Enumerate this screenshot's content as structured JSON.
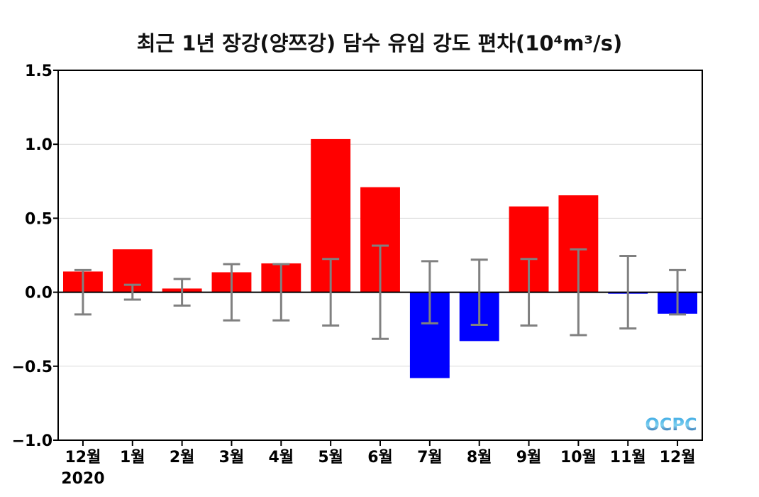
{
  "chart_data": {
    "type": "bar",
    "title": "최근 1년 장강(양쯔강) 담수 유입 강도 편차",
    "title_unit": "(10⁴m³/s)",
    "categories": [
      "12월",
      "1월",
      "2월",
      "3월",
      "4월",
      "5월",
      "6월",
      "7월",
      "8월",
      "9월",
      "10월",
      "11월",
      "12월"
    ],
    "first_year_label": "2020",
    "values": [
      0.14,
      0.29,
      0.025,
      0.135,
      0.195,
      1.035,
      0.71,
      -0.58,
      -0.33,
      0.58,
      0.655,
      -0.01,
      -0.145
    ],
    "error": [
      0.15,
      0.05,
      0.09,
      0.19,
      0.19,
      0.225,
      0.315,
      0.21,
      0.22,
      0.225,
      0.29,
      0.245,
      0.15
    ],
    "ylim": [
      -1.0,
      1.5
    ],
    "yticks": [
      "−1.0",
      "−0.5",
      "0.0",
      "0.5",
      "1.0",
      "1.5"
    ],
    "ytick_values": [
      -1.0,
      -0.5,
      0.0,
      0.5,
      1.0,
      1.5
    ],
    "grid": true,
    "colors": {
      "positive": "#ff0000",
      "negative": "#0000ff",
      "error_bar": "#808080",
      "grid": "#d9d9d9"
    },
    "logo": "OCPC"
  }
}
